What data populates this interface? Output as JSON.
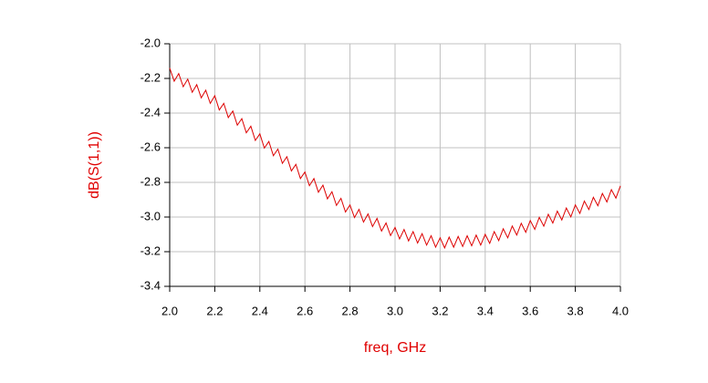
{
  "chart_data": {
    "type": "line",
    "xlabel": "freq, GHz",
    "ylabel": "dB(S(1,1))",
    "x": [
      2,
      2.02,
      2.04,
      2.06,
      2.08,
      2.1,
      2.12,
      2.14,
      2.16,
      2.18,
      2.2,
      2.22,
      2.24,
      2.26,
      2.28,
      2.3,
      2.32,
      2.34,
      2.36,
      2.38,
      2.4,
      2.42,
      2.44,
      2.46,
      2.48,
      2.5,
      2.52,
      2.54,
      2.56,
      2.58,
      2.6,
      2.62,
      2.64,
      2.66,
      2.68,
      2.7,
      2.72,
      2.74,
      2.76,
      2.78,
      2.8,
      2.82,
      2.84,
      2.86,
      2.88,
      2.9,
      2.92,
      2.94,
      2.96,
      2.98,
      3,
      3.02,
      3.04,
      3.06,
      3.08,
      3.1,
      3.12,
      3.14,
      3.16,
      3.18,
      3.2,
      3.22,
      3.24,
      3.26,
      3.28,
      3.3,
      3.32,
      3.34,
      3.36,
      3.38,
      3.4,
      3.42,
      3.44,
      3.46,
      3.48,
      3.5,
      3.52,
      3.54,
      3.56,
      3.58,
      3.6,
      3.62,
      3.64,
      3.66,
      3.68,
      3.7,
      3.72,
      3.74,
      3.76,
      3.78,
      3.8,
      3.82,
      3.84,
      3.86,
      3.88,
      3.9,
      3.92,
      3.94,
      3.96,
      3.98,
      4
    ],
    "values": [
      -2.14,
      -2.216,
      -2.172,
      -2.248,
      -2.204,
      -2.28,
      -2.236,
      -2.312,
      -2.268,
      -2.344,
      -2.3,
      -2.382,
      -2.344,
      -2.426,
      -2.388,
      -2.47,
      -2.432,
      -2.514,
      -2.476,
      -2.558,
      -2.52,
      -2.602,
      -2.564,
      -2.646,
      -2.608,
      -2.69,
      -2.652,
      -2.734,
      -2.696,
      -2.778,
      -2.74,
      -2.819,
      -2.778,
      -2.857,
      -2.816,
      -2.895,
      -2.854,
      -2.933,
      -2.892,
      -2.971,
      -2.93,
      -3.003,
      -2.956,
      -3.029,
      -2.982,
      -3.055,
      -3.008,
      -3.081,
      -3.034,
      -3.107,
      -3.06,
      -3.126,
      -3.072,
      -3.138,
      -3.084,
      -3.15,
      -3.096,
      -3.162,
      -3.108,
      -3.174,
      -3.12,
      -3.178,
      -3.116,
      -3.174,
      -3.112,
      -3.17,
      -3.108,
      -3.166,
      -3.104,
      -3.162,
      -3.1,
      -3.152,
      -3.084,
      -3.136,
      -3.068,
      -3.12,
      -3.052,
      -3.104,
      -3.036,
      -3.088,
      -3.02,
      -3.071,
      -3.002,
      -3.053,
      -2.984,
      -3.035,
      -2.966,
      -3.017,
      -2.948,
      -2.999,
      -2.93,
      -2.979,
      -2.908,
      -2.957,
      -2.886,
      -2.935,
      -2.864,
      -2.913,
      -2.842,
      -2.891,
      -2.82
    ],
    "color": "#dd0000",
    "xlim": [
      2,
      4
    ],
    "xticks": [
      {
        "value": 2,
        "label": "2.0"
      },
      2.2,
      2.4,
      2.6,
      2.8,
      {
        "value": 3,
        "label": "3.0"
      },
      3.2,
      3.4,
      3.6,
      3.8,
      {
        "value": 4,
        "label": "4.0"
      }
    ],
    "ylim": [
      -3.4,
      -2
    ],
    "yticks": [
      {
        "value": -2,
        "label": "-2.0"
      },
      -2.2,
      -2.4,
      -2.6,
      -2.8,
      {
        "value": -3,
        "label": "-3.0"
      },
      -3.2,
      -3.4
    ],
    "grid": true
  }
}
